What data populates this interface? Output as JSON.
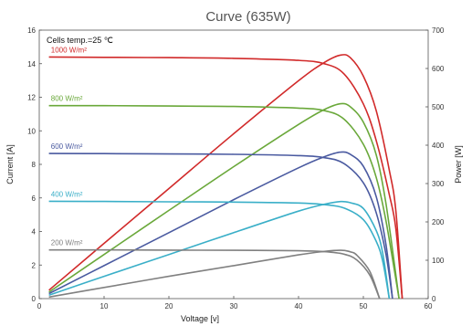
{
  "chart_data": {
    "type": "line",
    "title": "Curve (635W)",
    "xlabel": "Voltage [v]",
    "ylabel": "Current [A]",
    "y2label": "Power [W]",
    "xlim": [
      0,
      60
    ],
    "ylim": [
      0,
      16
    ],
    "y2lim": [
      0,
      700
    ],
    "xticks": [
      "0",
      "10",
      "20",
      "30",
      "40",
      "50",
      "60"
    ],
    "yticks": [
      "0",
      "2",
      "4",
      "6",
      "8",
      "10",
      "12",
      "14",
      "16"
    ],
    "y2ticks": [
      "0",
      "100",
      "200",
      "300",
      "400",
      "500",
      "600",
      "700"
    ],
    "grid": false,
    "annotation": "Cells temp.=25 ℃",
    "series": [
      {
        "name": "1000 W/m²",
        "color": "#d12a2a",
        "iv": [
          [
            1.5,
            14.4
          ],
          [
            10,
            14.38
          ],
          [
            20,
            14.36
          ],
          [
            30,
            14.32
          ],
          [
            40,
            14.2
          ],
          [
            44,
            14.0
          ],
          [
            47,
            13.4
          ],
          [
            50,
            11.6
          ],
          [
            52,
            9.4
          ],
          [
            54,
            6.2
          ],
          [
            55,
            4.2
          ],
          [
            56,
            0
          ]
        ],
        "pv": [
          [
            1.5,
            22
          ],
          [
            10,
            144
          ],
          [
            20,
            287
          ],
          [
            30,
            430
          ],
          [
            40,
            568
          ],
          [
            44,
            616
          ],
          [
            46.5,
            635
          ],
          [
            48,
            628
          ],
          [
            50,
            580
          ],
          [
            52,
            489
          ],
          [
            54,
            335
          ],
          [
            55,
            231
          ],
          [
            56,
            0
          ]
        ]
      },
      {
        "name": "800 W/m²",
        "color": "#6aa83a",
        "iv": [
          [
            1.5,
            11.5
          ],
          [
            10,
            11.5
          ],
          [
            20,
            11.48
          ],
          [
            30,
            11.45
          ],
          [
            40,
            11.35
          ],
          [
            44,
            11.2
          ],
          [
            47,
            10.7
          ],
          [
            50,
            9.2
          ],
          [
            52,
            7.2
          ],
          [
            53.5,
            4.6
          ],
          [
            55.5,
            0
          ]
        ],
        "pv": [
          [
            1.5,
            17
          ],
          [
            10,
            115
          ],
          [
            20,
            230
          ],
          [
            30,
            344
          ],
          [
            40,
            454
          ],
          [
            44,
            493
          ],
          [
            46.5,
            508
          ],
          [
            48,
            500
          ],
          [
            50,
            460
          ],
          [
            52,
            374
          ],
          [
            53.5,
            246
          ],
          [
            55.5,
            0
          ]
        ]
      },
      {
        "name": "600 W/m²",
        "color": "#4a5aa0",
        "iv": [
          [
            1.5,
            8.65
          ],
          [
            10,
            8.64
          ],
          [
            20,
            8.62
          ],
          [
            30,
            8.6
          ],
          [
            40,
            8.52
          ],
          [
            44,
            8.4
          ],
          [
            47,
            8.05
          ],
          [
            50,
            6.9
          ],
          [
            52,
            5.1
          ],
          [
            53.5,
            2.6
          ],
          [
            54.5,
            0
          ]
        ],
        "pv": [
          [
            1.5,
            13
          ],
          [
            10,
            86
          ],
          [
            20,
            172
          ],
          [
            30,
            258
          ],
          [
            40,
            341
          ],
          [
            44,
            370
          ],
          [
            46.5,
            382
          ],
          [
            48,
            376
          ],
          [
            50,
            345
          ],
          [
            52,
            265
          ],
          [
            53.5,
            139
          ],
          [
            54.5,
            0
          ]
        ]
      },
      {
        "name": "400 W/m²",
        "color": "#3aafc8",
        "iv": [
          [
            1.5,
            5.8
          ],
          [
            10,
            5.79
          ],
          [
            20,
            5.77
          ],
          [
            30,
            5.75
          ],
          [
            40,
            5.7
          ],
          [
            44,
            5.6
          ],
          [
            47,
            5.4
          ],
          [
            50,
            4.7
          ],
          [
            52,
            3.4
          ],
          [
            53,
            2.2
          ],
          [
            54,
            0
          ]
        ],
        "pv": [
          [
            1.5,
            9
          ],
          [
            10,
            58
          ],
          [
            20,
            115
          ],
          [
            30,
            172
          ],
          [
            40,
            228
          ],
          [
            44,
            246
          ],
          [
            46.5,
            253
          ],
          [
            48,
            250
          ],
          [
            50,
            235
          ],
          [
            52,
            177
          ],
          [
            53,
            117
          ],
          [
            54,
            0
          ]
        ]
      },
      {
        "name": "200 W/m²",
        "color": "#808080",
        "iv": [
          [
            1.5,
            2.9
          ],
          [
            10,
            2.9
          ],
          [
            20,
            2.89
          ],
          [
            30,
            2.88
          ],
          [
            40,
            2.85
          ],
          [
            44,
            2.8
          ],
          [
            47,
            2.65
          ],
          [
            49,
            2.3
          ],
          [
            51,
            1.4
          ],
          [
            52.5,
            0
          ]
        ],
        "pv": [
          [
            1.5,
            4
          ],
          [
            10,
            29
          ],
          [
            20,
            58
          ],
          [
            30,
            86
          ],
          [
            40,
            114
          ],
          [
            44,
            123
          ],
          [
            46.5,
            126
          ],
          [
            48,
            122
          ],
          [
            49,
            113
          ],
          [
            51,
            71
          ],
          [
            52.5,
            0
          ]
        ]
      }
    ]
  }
}
